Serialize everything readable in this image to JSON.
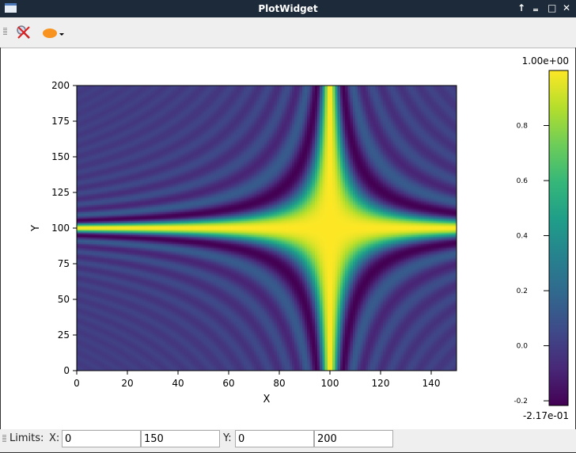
{
  "window": {
    "title": "PlotWidget",
    "buttons": [
      "↑",
      "‗",
      "□",
      "✕"
    ]
  },
  "toolbar": {
    "items": [
      {
        "icon": "reset-zoom-icon"
      },
      {
        "icon": "colormap-selector-icon",
        "color": "#f7931e"
      }
    ]
  },
  "status": {
    "limits_label": "Limits:",
    "x_label": "X:",
    "y_label": "Y:",
    "xmin": "0",
    "xmax": "150",
    "ymin": "0",
    "ymax": "200"
  },
  "chart_data": {
    "type": "heatmap",
    "colormap": "viridis",
    "xlabel": "X",
    "ylabel": "Y",
    "xlim": [
      0,
      150
    ],
    "ylim": [
      0,
      200
    ],
    "xticks": [
      "0",
      "20",
      "40",
      "60",
      "80",
      "100",
      "120",
      "140"
    ],
    "yticks": [
      "0",
      "25",
      "50",
      "75",
      "100",
      "125",
      "150",
      "175",
      "200"
    ],
    "grid_shape": [
      200,
      150
    ],
    "peak_location": {
      "x": 100,
      "y": 100
    },
    "colorbar": {
      "min": -0.217,
      "max": 1.0,
      "min_label": "-2.17e-01",
      "max_label": "1.00e+00",
      "ticks": [
        "-0.2",
        "0.0",
        "0.2",
        "0.4",
        "0.6",
        "0.8"
      ]
    }
  }
}
